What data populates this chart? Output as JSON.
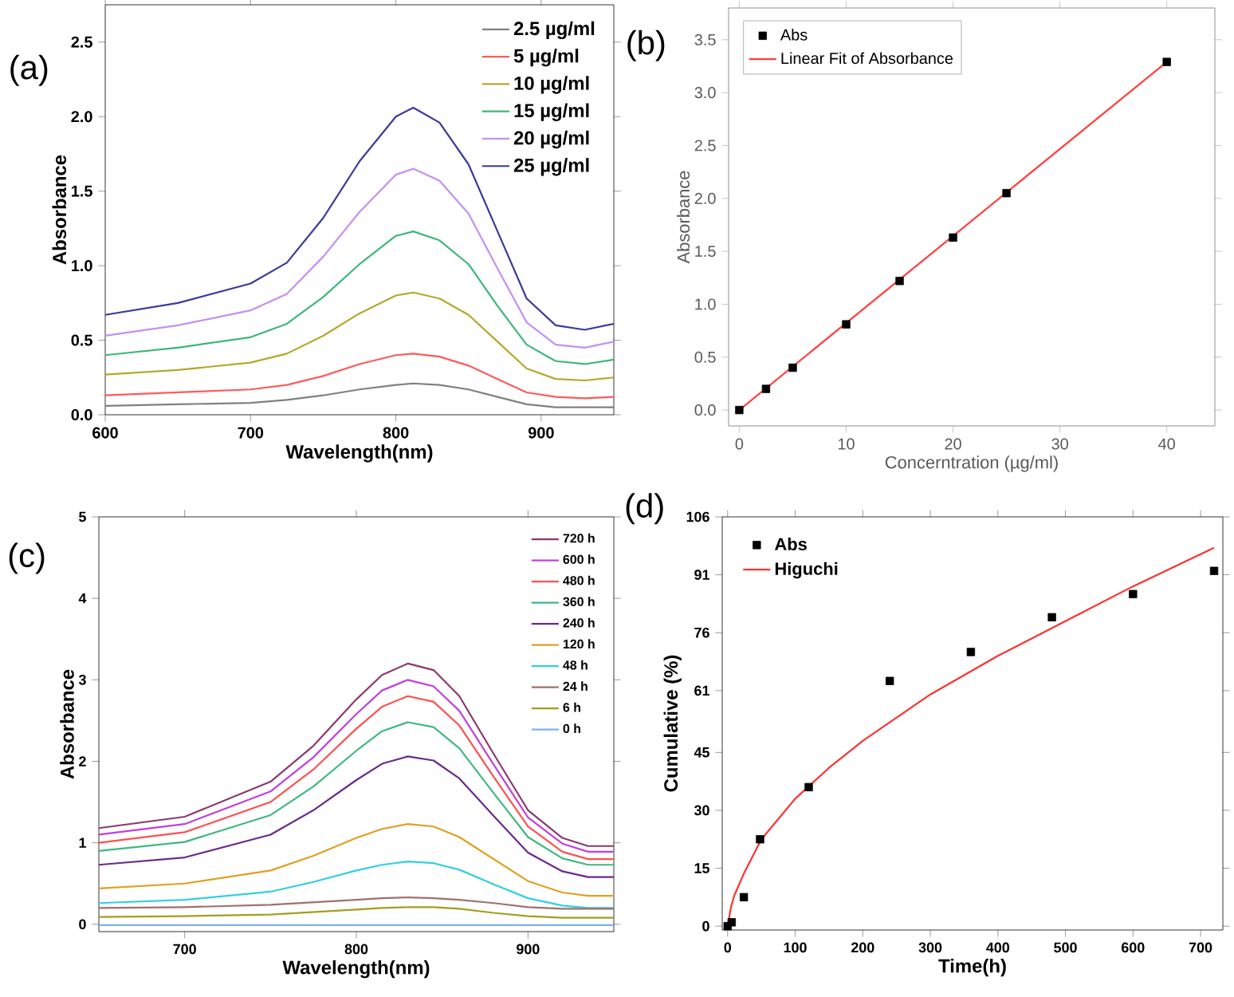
{
  "chart_data": [
    {
      "type": "line",
      "annotations": [
        "(a)"
      ],
      "xlabel": "Wavelength(nm)",
      "ylabel": "Absorbance",
      "xlim": [
        600,
        950
      ],
      "ylim": [
        0,
        2.75
      ],
      "xticks": [
        600,
        700,
        800,
        900
      ],
      "yticks": [
        {
          "value": 0,
          "label": "0.0"
        },
        {
          "value": 0.5,
          "label": "0.5"
        },
        {
          "value": 1,
          "label": "1.0"
        },
        {
          "value": 1.5,
          "label": "1.5"
        },
        {
          "value": 2,
          "label": "2.0"
        },
        {
          "value": 2.5,
          "label": "2.5"
        }
      ],
      "legend": "top right",
      "x": [
        600,
        650,
        700,
        725,
        750,
        775,
        800,
        812,
        830,
        850,
        870,
        890,
        910,
        930,
        950
      ],
      "series": [
        {
          "name": "2.5 µg/ml",
          "color": "#808080",
          "values": [
            0.06,
            0.07,
            0.08,
            0.1,
            0.13,
            0.17,
            0.2,
            0.21,
            0.2,
            0.17,
            0.12,
            0.07,
            0.05,
            0.05,
            0.05
          ]
        },
        {
          "name": "5 µg/ml",
          "color": "#ff5a5a",
          "values": [
            0.13,
            0.15,
            0.17,
            0.2,
            0.26,
            0.34,
            0.4,
            0.41,
            0.39,
            0.33,
            0.24,
            0.15,
            0.12,
            0.11,
            0.12
          ]
        },
        {
          "name": "10 µg/ml",
          "color": "#b5a82a",
          "values": [
            0.27,
            0.3,
            0.35,
            0.41,
            0.53,
            0.68,
            0.8,
            0.82,
            0.78,
            0.67,
            0.49,
            0.31,
            0.24,
            0.23,
            0.25
          ]
        },
        {
          "name": "15 µg/ml",
          "color": "#3cb878",
          "values": [
            0.4,
            0.45,
            0.52,
            0.61,
            0.79,
            1.01,
            1.2,
            1.23,
            1.17,
            1.01,
            0.73,
            0.47,
            0.36,
            0.34,
            0.37
          ]
        },
        {
          "name": "20 µg/ml",
          "color": "#c490f0",
          "values": [
            0.53,
            0.6,
            0.7,
            0.81,
            1.06,
            1.36,
            1.61,
            1.65,
            1.57,
            1.35,
            0.98,
            0.62,
            0.47,
            0.45,
            0.49
          ]
        },
        {
          "name": "25 µg/ml",
          "color": "#3a3a9a",
          "values": [
            0.67,
            0.75,
            0.88,
            1.02,
            1.32,
            1.7,
            2.0,
            2.06,
            1.96,
            1.68,
            1.23,
            0.78,
            0.6,
            0.57,
            0.61
          ]
        }
      ]
    },
    {
      "type": "scatter",
      "annotations": [
        "(b)"
      ],
      "xlabel": "Concerntration (µg/ml)",
      "ylabel": "Absorbance",
      "xlim": [
        -1,
        44.5
      ],
      "ylim": [
        -0.15,
        3.8
      ],
      "xticks": [
        0,
        10,
        20,
        30,
        40
      ],
      "yticks": [
        {
          "value": 0,
          "label": "0.0"
        },
        {
          "value": 0.5,
          "label": "0.5"
        },
        {
          "value": 1,
          "label": "1.0"
        },
        {
          "value": 1.5,
          "label": "1.5"
        },
        {
          "value": 2,
          "label": "2.0"
        },
        {
          "value": 2.5,
          "label": "2.5"
        },
        {
          "value": 3,
          "label": "3.0"
        },
        {
          "value": 3.5,
          "label": "3.5"
        }
      ],
      "legend": "top left",
      "x": [
        0,
        2.5,
        5,
        10,
        15,
        20,
        25,
        40
      ],
      "series": [
        {
          "name": "Abs",
          "color": "#000000",
          "marker": "square",
          "values": [
            0,
            0.2,
            0.4,
            0.81,
            1.22,
            1.63,
            2.05,
            3.29
          ]
        },
        {
          "name": "Linear Fit of Absorbance",
          "type": "line",
          "color": "#ff4040",
          "x": [
            0,
            40
          ],
          "values": [
            0,
            3.29
          ]
        }
      ]
    },
    {
      "type": "line",
      "annotations": [
        "(c)"
      ],
      "xlabel": "Wavelength(nm)",
      "ylabel": "Absorbance",
      "xlim": [
        650,
        950
      ],
      "ylim": [
        -0.09,
        5
      ],
      "xticks": [
        700,
        800,
        900
      ],
      "yticks": [
        0,
        1,
        2,
        3,
        4,
        5
      ],
      "legend": "top right",
      "x": [
        650,
        700,
        750,
        775,
        800,
        815,
        830,
        845,
        860,
        880,
        900,
        920,
        935,
        950
      ],
      "series": [
        {
          "name": "720 h",
          "color": "#8b3a6b",
          "values": [
            1.18,
            1.32,
            1.75,
            2.19,
            2.76,
            3.06,
            3.2,
            3.12,
            2.8,
            2.09,
            1.4,
            1.06,
            0.96,
            0.96
          ]
        },
        {
          "name": "600 h",
          "color": "#c040e0",
          "values": [
            1.1,
            1.23,
            1.63,
            2.05,
            2.58,
            2.87,
            3.0,
            2.92,
            2.62,
            1.96,
            1.31,
            0.99,
            0.89,
            0.89
          ]
        },
        {
          "name": "480 h",
          "color": "#ff5050",
          "values": [
            1.0,
            1.13,
            1.5,
            1.9,
            2.4,
            2.67,
            2.8,
            2.73,
            2.44,
            1.81,
            1.2,
            0.89,
            0.8,
            0.8
          ]
        },
        {
          "name": "360 h",
          "color": "#40b880",
          "values": [
            0.9,
            1.01,
            1.34,
            1.69,
            2.13,
            2.37,
            2.48,
            2.42,
            2.16,
            1.61,
            1.07,
            0.81,
            0.73,
            0.73
          ]
        },
        {
          "name": "240 h",
          "color": "#6a2a8a",
          "values": [
            0.73,
            0.82,
            1.1,
            1.4,
            1.77,
            1.97,
            2.06,
            2.01,
            1.79,
            1.33,
            0.88,
            0.65,
            0.58,
            0.58
          ]
        },
        {
          "name": "120 h",
          "color": "#e0a020",
          "values": [
            0.44,
            0.5,
            0.66,
            0.84,
            1.06,
            1.17,
            1.23,
            1.2,
            1.07,
            0.8,
            0.53,
            0.39,
            0.35,
            0.35
          ]
        },
        {
          "name": "48 h",
          "color": "#30d0e0",
          "values": [
            0.26,
            0.3,
            0.4,
            0.52,
            0.66,
            0.73,
            0.77,
            0.75,
            0.67,
            0.49,
            0.32,
            0.23,
            0.2,
            0.2
          ]
        },
        {
          "name": "24 h",
          "color": "#a07070",
          "values": [
            0.2,
            0.21,
            0.24,
            0.27,
            0.3,
            0.32,
            0.33,
            0.32,
            0.3,
            0.26,
            0.21,
            0.19,
            0.19,
            0.19
          ]
        },
        {
          "name": "6 h",
          "color": "#a0a020",
          "values": [
            0.09,
            0.1,
            0.12,
            0.15,
            0.18,
            0.2,
            0.21,
            0.21,
            0.19,
            0.14,
            0.1,
            0.08,
            0.08,
            0.08
          ]
        },
        {
          "name": "0 h",
          "color": "#80b0f0",
          "values": [
            -0.01,
            -0.01,
            -0.01,
            -0.01,
            -0.01,
            -0.01,
            -0.01,
            -0.01,
            -0.01,
            -0.01,
            -0.01,
            -0.01,
            -0.01,
            -0.01
          ]
        }
      ]
    },
    {
      "type": "scatter",
      "annotations": [
        "(d)"
      ],
      "xlabel": "Time(h)",
      "ylabel": "Cumulative (%)",
      "xlim": [
        -8,
        733
      ],
      "ylim": [
        -1,
        106
      ],
      "xticks": [
        0,
        100,
        200,
        300,
        400,
        500,
        600,
        700
      ],
      "yticks": [
        0,
        15,
        30,
        45,
        61,
        76,
        91,
        106
      ],
      "legend": "top left",
      "x": [
        0,
        6,
        24,
        48,
        120,
        240,
        360,
        480,
        600,
        720
      ],
      "series": [
        {
          "name": "Abs",
          "color": "#000000",
          "marker": "square",
          "values": [
            0,
            1,
            7.5,
            22.5,
            36,
            63.5,
            71,
            80,
            86,
            92
          ]
        },
        {
          "name": "Higuchi",
          "type": "line",
          "color": "#ff3030",
          "x": [
            0,
            5,
            10,
            25,
            50,
            100,
            150,
            200,
            300,
            400,
            500,
            600,
            720
          ],
          "values": [
            0,
            5,
            8,
            14,
            22.5,
            33,
            41,
            48,
            60,
            70,
            79,
            88,
            98
          ]
        }
      ]
    }
  ]
}
